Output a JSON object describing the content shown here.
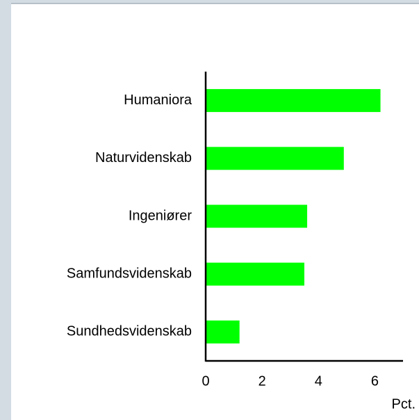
{
  "chart_data": {
    "type": "barh",
    "categories": [
      "Humaniora",
      "Naturvidenskab",
      "Ingeniører",
      "Samfundsvidenskab",
      "Sundhedsvidenskab"
    ],
    "values": [
      6.2,
      4.9,
      3.6,
      3.5,
      1.2
    ],
    "color": "#00ff00",
    "xlim": [
      0,
      7
    ],
    "xticks": [
      0,
      2,
      4,
      6
    ],
    "xlabel": "Pct."
  }
}
